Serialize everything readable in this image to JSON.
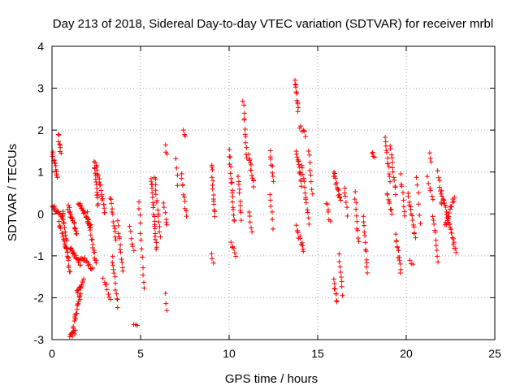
{
  "chart_data": {
    "type": "scatter",
    "title": "Day 213 of 2018, Sidereal Day-to-day VTEC variation (SDTVAR) for receiver mrbl",
    "xlabel": "GPS time / hours",
    "ylabel": "SDTVAR / TECUs",
    "xlim": [
      0,
      25
    ],
    "ylim": [
      -3,
      4
    ],
    "xticks": [
      "0",
      "5",
      "10",
      "15",
      "20",
      "25"
    ],
    "yticks": [
      "-3",
      "-2",
      "-1",
      "0",
      "1",
      "2",
      "3",
      "4"
    ],
    "grid": true,
    "marker": "+",
    "color": "#ff0000",
    "series": [
      {
        "name": "SDTVAR",
        "tracks": [
          {
            "x0": 0.0,
            "x1": 0.3,
            "y0": 1.5,
            "y1": 0.9,
            "n": 14
          },
          {
            "x0": 0.0,
            "x1": 0.6,
            "y0": 0.2,
            "y1": -0.1,
            "n": 16
          },
          {
            "x0": 0.35,
            "x1": 0.5,
            "y0": 1.9,
            "y1": 1.4,
            "n": 8
          },
          {
            "x0": 0.4,
            "x1": 0.9,
            "y0": -0.2,
            "y1": -1.0,
            "n": 16
          },
          {
            "x0": 0.6,
            "x1": 1.0,
            "y0": 0.1,
            "y1": -1.4,
            "n": 22
          },
          {
            "x0": 0.9,
            "x1": 1.4,
            "y0": 0.2,
            "y1": -0.5,
            "n": 20
          },
          {
            "x0": 1.0,
            "x1": 1.6,
            "y0": -0.8,
            "y1": -1.2,
            "n": 18
          },
          {
            "x0": 1.0,
            "x1": 1.3,
            "y0": -2.9,
            "y1": -2.8,
            "n": 10
          },
          {
            "x0": 1.2,
            "x1": 1.6,
            "y0": -2.7,
            "y1": -1.9,
            "n": 18
          },
          {
            "x0": 1.4,
            "x1": 1.8,
            "y0": -1.9,
            "y1": -1.6,
            "n": 12
          },
          {
            "x0": 1.5,
            "x1": 2.2,
            "y0": 0.3,
            "y1": -0.3,
            "n": 22
          },
          {
            "x0": 1.6,
            "x1": 2.3,
            "y0": -1.0,
            "y1": -1.3,
            "n": 16
          },
          {
            "x0": 2.0,
            "x1": 2.5,
            "y0": 0.0,
            "y1": -1.2,
            "n": 20
          },
          {
            "x0": 2.4,
            "x1": 2.6,
            "y0": 1.3,
            "y1": 0.2,
            "n": 16
          },
          {
            "x0": 2.5,
            "x1": 3.0,
            "y0": 1.2,
            "y1": 0.0,
            "n": 20
          },
          {
            "x0": 2.9,
            "x1": 3.3,
            "y0": -1.5,
            "y1": -2.0,
            "n": 8
          },
          {
            "x0": 3.3,
            "x1": 3.6,
            "y0": 0.4,
            "y1": -0.6,
            "n": 12
          },
          {
            "x0": 3.4,
            "x1": 3.7,
            "y0": -1.0,
            "y1": -2.2,
            "n": 12
          },
          {
            "x0": 3.7,
            "x1": 4.0,
            "y0": -0.2,
            "y1": -1.4,
            "n": 12
          },
          {
            "x0": 4.4,
            "x1": 4.6,
            "y0": -0.3,
            "y1": -0.9,
            "n": 6
          },
          {
            "x0": 4.6,
            "x1": 4.8,
            "y0": -2.6,
            "y1": -2.7,
            "n": 3
          },
          {
            "x0": 4.9,
            "x1": 5.2,
            "y0": 0.3,
            "y1": -1.8,
            "n": 12
          },
          {
            "x0": 5.6,
            "x1": 5.9,
            "y0": 0.9,
            "y1": -0.9,
            "n": 22
          },
          {
            "x0": 5.8,
            "x1": 6.1,
            "y0": 0.9,
            "y1": -0.5,
            "n": 14
          },
          {
            "x0": 6.4,
            "x1": 6.5,
            "y0": 1.6,
            "y1": 1.4,
            "n": 3
          },
          {
            "x0": 6.3,
            "x1": 6.5,
            "y0": 0.2,
            "y1": -0.3,
            "n": 6
          },
          {
            "x0": 6.4,
            "x1": 6.5,
            "y0": -1.9,
            "y1": -2.3,
            "n": 3
          },
          {
            "x0": 7.0,
            "x1": 7.1,
            "y0": 1.3,
            "y1": 0.7,
            "n": 4
          },
          {
            "x0": 7.4,
            "x1": 7.5,
            "y0": 1.95,
            "y1": 1.8,
            "n": 3
          },
          {
            "x0": 7.3,
            "x1": 7.6,
            "y0": 1.0,
            "y1": -0.1,
            "n": 10
          },
          {
            "x0": 9.0,
            "x1": 9.2,
            "y0": 1.2,
            "y1": -0.1,
            "n": 14
          },
          {
            "x0": 9.0,
            "x1": 9.1,
            "y0": -0.9,
            "y1": -1.2,
            "n": 3
          },
          {
            "x0": 10.0,
            "x1": 10.3,
            "y0": 1.5,
            "y1": -0.2,
            "n": 18
          },
          {
            "x0": 10.1,
            "x1": 10.4,
            "y0": -0.7,
            "y1": -1.0,
            "n": 6
          },
          {
            "x0": 10.5,
            "x1": 10.7,
            "y0": 0.9,
            "y1": -0.1,
            "n": 10
          },
          {
            "x0": 10.8,
            "x1": 11.0,
            "y0": 2.7,
            "y1": 1.3,
            "n": 12
          },
          {
            "x0": 11.1,
            "x1": 11.4,
            "y0": 1.4,
            "y1": 0.7,
            "n": 12
          },
          {
            "x0": 11.1,
            "x1": 11.3,
            "y0": 0.1,
            "y1": -0.4,
            "n": 5
          },
          {
            "x0": 12.3,
            "x1": 12.5,
            "y0": 1.5,
            "y1": 0.8,
            "n": 8
          },
          {
            "x0": 12.3,
            "x1": 12.5,
            "y0": 0.5,
            "y1": -0.3,
            "n": 6
          },
          {
            "x0": 13.7,
            "x1": 13.9,
            "y0": 3.2,
            "y1": 2.5,
            "n": 12
          },
          {
            "x0": 13.8,
            "x1": 14.1,
            "y0": 1.5,
            "y1": 0.7,
            "n": 14
          },
          {
            "x0": 14.0,
            "x1": 14.3,
            "y0": 2.1,
            "y1": 1.9,
            "n": 6
          },
          {
            "x0": 13.8,
            "x1": 14.2,
            "y0": -0.3,
            "y1": -0.9,
            "n": 12
          },
          {
            "x0": 14.1,
            "x1": 14.5,
            "y0": 1.2,
            "y1": -0.2,
            "n": 14
          },
          {
            "x0": 14.5,
            "x1": 14.7,
            "y0": 1.5,
            "y1": 0.5,
            "n": 8
          },
          {
            "x0": 15.5,
            "x1": 15.7,
            "y0": 0.3,
            "y1": -0.2,
            "n": 6
          },
          {
            "x0": 15.9,
            "x1": 16.3,
            "y0": 1.0,
            "y1": 0.3,
            "n": 16
          },
          {
            "x0": 15.9,
            "x1": 16.1,
            "y0": -1.6,
            "y1": -2.1,
            "n": 8
          },
          {
            "x0": 16.2,
            "x1": 16.4,
            "y0": -1.0,
            "y1": -1.9,
            "n": 8
          },
          {
            "x0": 16.5,
            "x1": 16.7,
            "y0": 0.6,
            "y1": 0.0,
            "n": 6
          },
          {
            "x0": 17.1,
            "x1": 17.3,
            "y0": 0.5,
            "y1": -0.7,
            "n": 10
          },
          {
            "x0": 17.6,
            "x1": 17.8,
            "y0": -0.1,
            "y1": -1.4,
            "n": 12
          },
          {
            "x0": 18.1,
            "x1": 18.2,
            "y0": 1.5,
            "y1": 1.3,
            "n": 4
          },
          {
            "x0": 18.8,
            "x1": 19.1,
            "y0": 1.8,
            "y1": 0.8,
            "n": 12
          },
          {
            "x0": 18.9,
            "x1": 19.2,
            "y0": 0.5,
            "y1": 0.0,
            "n": 8
          },
          {
            "x0": 19.1,
            "x1": 19.4,
            "y0": 1.6,
            "y1": 0.5,
            "n": 12
          },
          {
            "x0": 19.4,
            "x1": 19.7,
            "y0": -0.5,
            "y1": -1.4,
            "n": 12
          },
          {
            "x0": 19.7,
            "x1": 19.9,
            "y0": 0.9,
            "y1": -0.1,
            "n": 8
          },
          {
            "x0": 20.1,
            "x1": 20.5,
            "y0": 0.5,
            "y1": -0.6,
            "n": 14
          },
          {
            "x0": 20.2,
            "x1": 20.4,
            "y0": -1.1,
            "y1": -1.2,
            "n": 3
          },
          {
            "x0": 20.6,
            "x1": 20.8,
            "y0": 0.9,
            "y1": -0.2,
            "n": 6
          },
          {
            "x0": 21.3,
            "x1": 21.4,
            "y0": 1.5,
            "y1": 1.2,
            "n": 3
          },
          {
            "x0": 21.2,
            "x1": 21.5,
            "y0": 0.9,
            "y1": 0.3,
            "n": 6
          },
          {
            "x0": 21.5,
            "x1": 21.8,
            "y0": 0.0,
            "y1": -1.1,
            "n": 10
          },
          {
            "x0": 21.8,
            "x1": 22.0,
            "y0": 1.0,
            "y1": 0.2,
            "n": 8
          },
          {
            "x0": 22.0,
            "x1": 22.8,
            "y0": 0.5,
            "y1": -0.9,
            "n": 26
          },
          {
            "x0": 22.2,
            "x1": 22.7,
            "y0": -0.3,
            "y1": 0.4,
            "n": 16
          }
        ]
      }
    ]
  }
}
